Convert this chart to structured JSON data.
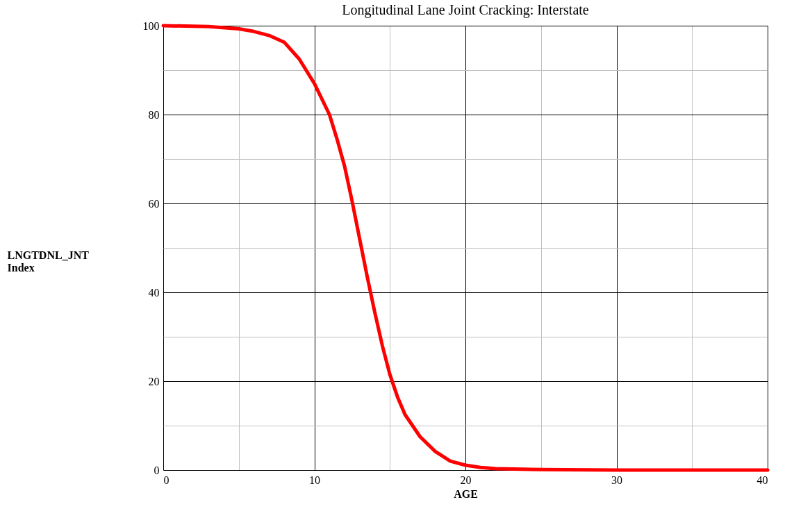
{
  "chart_data": {
    "type": "line",
    "title": "Longitudinal Lane Joint Cracking: Interstate",
    "xlabel": "AGE",
    "ylabel": "LNGTDNL_JNT Index",
    "x": [
      0,
      3,
      5,
      6,
      7,
      8,
      9,
      10,
      11,
      11.5,
      12,
      12.5,
      13,
      13.5,
      14,
      14.5,
      15,
      15.5,
      16,
      17,
      18,
      19,
      20,
      21,
      22,
      25,
      30,
      35,
      40
    ],
    "series": [
      {
        "color": "#ff0000",
        "values": [
          100,
          99.8,
          99.3,
          98.7,
          97.8,
          96.3,
          92.5,
          87,
          80,
          74.5,
          68.4,
          60.5,
          52,
          43.5,
          35.5,
          28,
          21.5,
          16.5,
          12.5,
          7.5,
          4.2,
          2,
          1.1,
          0.6,
          0.3,
          0.1,
          0,
          0,
          0
        ]
      }
    ],
    "xlim": [
      0,
      40
    ],
    "ylim": [
      0,
      100
    ],
    "xticks": [
      0,
      {
        "value": 5,
        "label": null
      },
      10,
      {
        "value": 15,
        "label": null
      },
      20,
      {
        "value": 25,
        "label": null
      },
      30,
      {
        "value": 35,
        "label": null
      },
      40
    ],
    "yticks": [
      0,
      {
        "value": 10,
        "label": null
      },
      20,
      {
        "value": 30,
        "label": null
      },
      40,
      {
        "value": 50,
        "label": null
      },
      60,
      {
        "value": 70,
        "label": null
      },
      80,
      {
        "value": 90,
        "label": null
      },
      100
    ],
    "grid": true,
    "line_style": "solid",
    "marker": "none"
  }
}
